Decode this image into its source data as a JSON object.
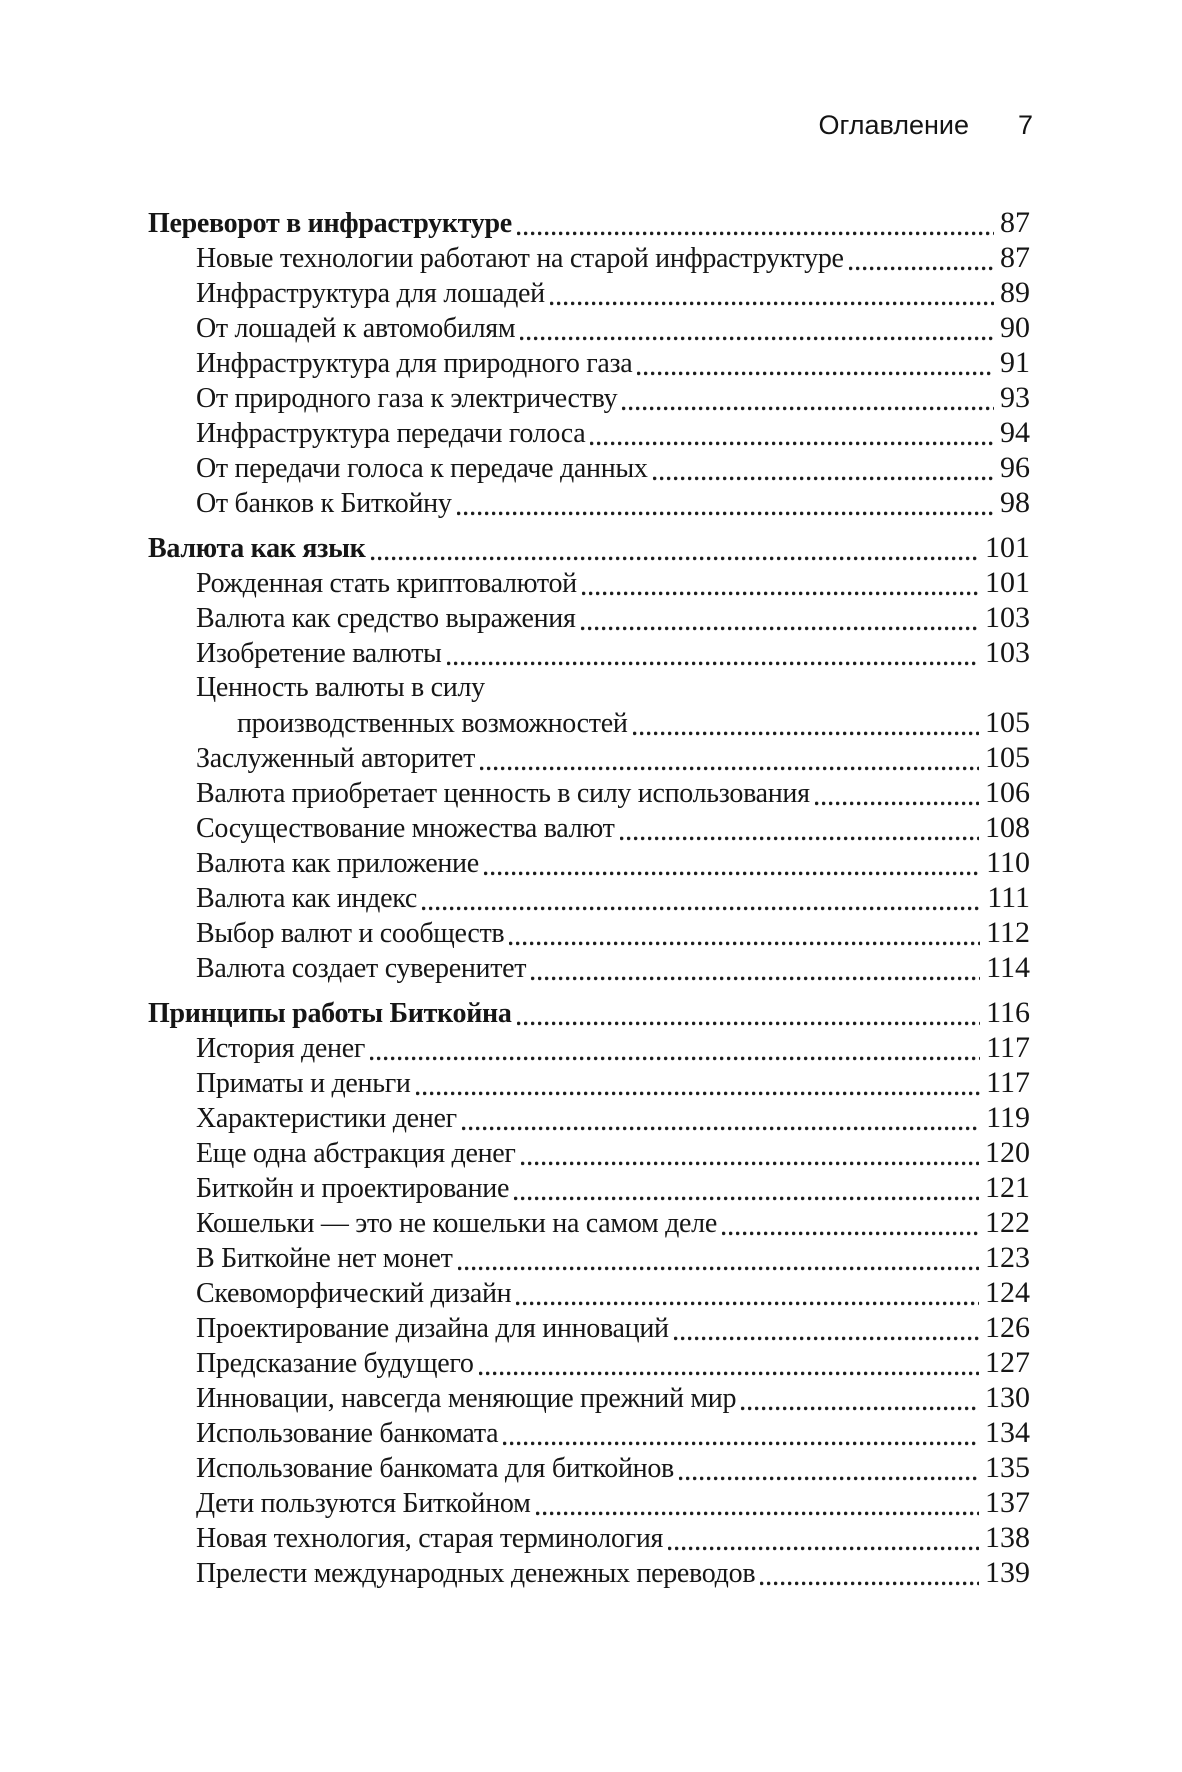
{
  "header": {
    "title": "Оглавление",
    "page_number": "7"
  },
  "toc": {
    "entries": [
      {
        "label": "Переворот в инфраструктуре",
        "page": "87",
        "level": "section"
      },
      {
        "label": "Новые технологии работают на старой инфраструктуре",
        "page": "87",
        "level": "sub"
      },
      {
        "label": "Инфраструктура для лошадей",
        "page": "89",
        "level": "sub"
      },
      {
        "label": "От лошадей к автомобилям",
        "page": "90",
        "level": "sub"
      },
      {
        "label": "Инфраструктура для природного газа",
        "page": "91",
        "level": "sub"
      },
      {
        "label": "От природного газа к электричеству",
        "page": "93",
        "level": "sub"
      },
      {
        "label": "Инфраструктура передачи голоса",
        "page": "94",
        "level": "sub"
      },
      {
        "label": "От передачи голоса к передаче данных",
        "page": "96",
        "level": "sub"
      },
      {
        "label": "От банков к Биткойну",
        "page": "98",
        "level": "sub"
      },
      {
        "label": "Валюта как язык",
        "page": "101",
        "level": "section"
      },
      {
        "label": "Рожденная стать криптовалютой",
        "page": "101",
        "level": "sub"
      },
      {
        "label": "Валюта как средство выражения",
        "page": "103",
        "level": "sub"
      },
      {
        "label": "Изобретение валюты",
        "page": "103",
        "level": "sub"
      },
      {
        "label": "Ценность валюты в силу",
        "page": "",
        "level": "sub"
      },
      {
        "label": "производственных возможностей",
        "page": "105",
        "level": "wrap"
      },
      {
        "label": "Заслуженный авторитет",
        "page": "105",
        "level": "sub"
      },
      {
        "label": "Валюта приобретает ценность в силу использования",
        "page": "106",
        "level": "sub"
      },
      {
        "label": "Сосуществование множества валют",
        "page": "108",
        "level": "sub"
      },
      {
        "label": "Валюта как приложение",
        "page": "110",
        "level": "sub"
      },
      {
        "label": "Валюта как индекс",
        "page": "111",
        "level": "sub"
      },
      {
        "label": "Выбор валют и сообществ",
        "page": "112",
        "level": "sub"
      },
      {
        "label": "Валюта создает суверенитет",
        "page": "114",
        "level": "sub"
      },
      {
        "label": "Принципы работы Биткойна",
        "page": "116",
        "level": "section"
      },
      {
        "label": "История денег",
        "page": "117",
        "level": "sub"
      },
      {
        "label": "Приматы и деньги",
        "page": "117",
        "level": "sub"
      },
      {
        "label": "Характеристики денег",
        "page": "119",
        "level": "sub"
      },
      {
        "label": "Еще одна абстракция денег",
        "page": "120",
        "level": "sub"
      },
      {
        "label": "Биткойн и проектирование",
        "page": "121",
        "level": "sub"
      },
      {
        "label": "Кошельки — это не кошельки на самом деле",
        "page": "122",
        "level": "sub"
      },
      {
        "label": "В Биткойне нет монет",
        "page": "123",
        "level": "sub"
      },
      {
        "label": "Скевоморфический дизайн",
        "page": "124",
        "level": "sub"
      },
      {
        "label": "Проектирование дизайна для инноваций",
        "page": "126",
        "level": "sub"
      },
      {
        "label": "Предсказание будущего",
        "page": "127",
        "level": "sub"
      },
      {
        "label": "Инновации, навсегда меняющие прежний мир",
        "page": "130",
        "level": "sub"
      },
      {
        "label": "Использование банкомата",
        "page": "134",
        "level": "sub"
      },
      {
        "label": "Использование банкомата для биткойнов",
        "page": "135",
        "level": "sub"
      },
      {
        "label": "Дети пользуются Биткойном",
        "page": "137",
        "level": "sub"
      },
      {
        "label": "Новая технология, старая терминология",
        "page": "138",
        "level": "sub"
      },
      {
        "label": "Прелести международных денежных переводов",
        "page": "139",
        "level": "sub"
      }
    ]
  }
}
